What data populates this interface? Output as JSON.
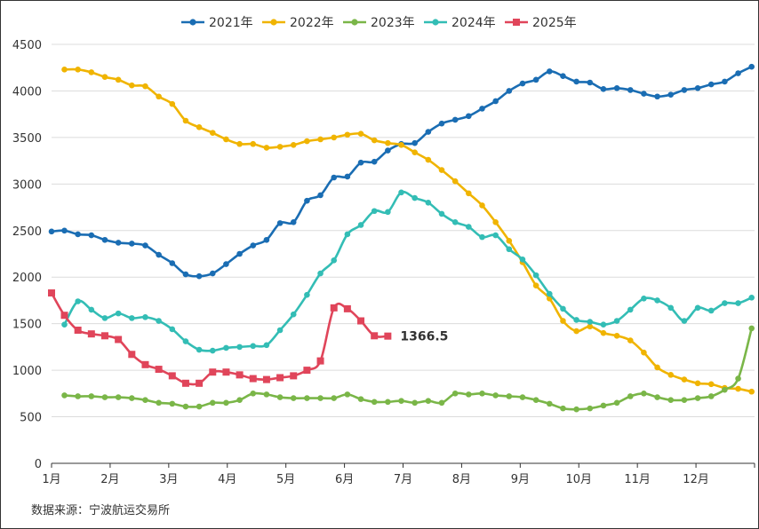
{
  "chart_data": {
    "type": "line",
    "source": "数据来源：宁波航运交易所",
    "ylim": [
      0,
      4500
    ],
    "yticks": [
      0,
      500,
      1000,
      1500,
      2000,
      2500,
      3000,
      3500,
      4000,
      4500
    ],
    "xlim": [
      1,
      13
    ],
    "month_labels": [
      "1月",
      "2月",
      "3月",
      "4月",
      "5月",
      "6月",
      "7月",
      "8月",
      "9月",
      "10月",
      "11月",
      "12月"
    ],
    "grid": "horizontal",
    "legend_position": "top",
    "annotation": "1366.5",
    "series": [
      {
        "name": "2021年",
        "color": "#1a6db3",
        "marker": "circle",
        "x": [
          1.0,
          1.22,
          1.45,
          1.68,
          1.91,
          2.14,
          2.37,
          2.6,
          2.83,
          3.06,
          3.29,
          3.52,
          3.75,
          3.98,
          4.21,
          4.44,
          4.67,
          4.9,
          5.13,
          5.36,
          5.59,
          5.82,
          6.05,
          6.28,
          6.51,
          6.74,
          6.97,
          7.2,
          7.43,
          7.66,
          7.89,
          8.12,
          8.35,
          8.58,
          8.81,
          9.04,
          9.27,
          9.5,
          9.73,
          9.96,
          10.19,
          10.42,
          10.65,
          10.88,
          11.11,
          11.34,
          11.57,
          11.8,
          12.03,
          12.26,
          12.49,
          12.72,
          12.95
        ],
        "y": [
          2490,
          2500,
          2460,
          2450,
          2400,
          2370,
          2360,
          2340,
          2240,
          2150,
          2030,
          2010,
          2040,
          2140,
          2250,
          2340,
          2400,
          2580,
          2590,
          2820,
          2880,
          3070,
          3080,
          3230,
          3240,
          3360,
          3430,
          3440,
          3560,
          3650,
          3690,
          3730,
          3810,
          3890,
          4000,
          4080,
          4120,
          4210,
          4160,
          4100,
          4090,
          4020,
          4030,
          4010,
          3970,
          3940,
          3960,
          4010,
          4030,
          4070,
          4100,
          4190,
          4260
        ]
      },
      {
        "name": "2022年",
        "color": "#f0b400",
        "marker": "circle",
        "x": [
          1.22,
          1.45,
          1.68,
          1.91,
          2.14,
          2.37,
          2.6,
          2.83,
          3.06,
          3.29,
          3.52,
          3.75,
          3.98,
          4.21,
          4.44,
          4.67,
          4.9,
          5.13,
          5.36,
          5.59,
          5.82,
          6.05,
          6.28,
          6.51,
          6.74,
          6.97,
          7.2,
          7.43,
          7.66,
          7.89,
          8.12,
          8.35,
          8.58,
          8.81,
          9.04,
          9.27,
          9.5,
          9.73,
          9.96,
          10.19,
          10.42,
          10.65,
          10.88,
          11.11,
          11.34,
          11.57,
          11.8,
          12.03,
          12.26,
          12.49,
          12.72,
          12.95
        ],
        "y": [
          4230,
          4230,
          4200,
          4150,
          4120,
          4060,
          4050,
          3940,
          3860,
          3680,
          3610,
          3550,
          3480,
          3430,
          3430,
          3390,
          3400,
          3420,
          3460,
          3480,
          3500,
          3530,
          3540,
          3470,
          3440,
          3420,
          3340,
          3260,
          3150,
          3030,
          2900,
          2770,
          2590,
          2390,
          2160,
          1910,
          1770,
          1530,
          1420,
          1470,
          1400,
          1370,
          1320,
          1190,
          1030,
          950,
          900,
          860,
          850,
          810,
          800,
          770
        ]
      },
      {
        "name": "2023年",
        "color": "#7ab648",
        "marker": "circle",
        "x": [
          1.22,
          1.45,
          1.68,
          1.91,
          2.14,
          2.37,
          2.6,
          2.83,
          3.06,
          3.29,
          3.52,
          3.75,
          3.98,
          4.21,
          4.44,
          4.67,
          4.9,
          5.13,
          5.36,
          5.59,
          5.82,
          6.05,
          6.28,
          6.51,
          6.74,
          6.97,
          7.2,
          7.43,
          7.66,
          7.89,
          8.12,
          8.35,
          8.58,
          8.81,
          9.04,
          9.27,
          9.5,
          9.73,
          9.96,
          10.19,
          10.42,
          10.65,
          10.88,
          11.11,
          11.34,
          11.57,
          11.8,
          12.03,
          12.26,
          12.49,
          12.72,
          12.95
        ],
        "y": [
          730,
          720,
          720,
          710,
          710,
          700,
          680,
          650,
          640,
          610,
          610,
          650,
          650,
          680,
          750,
          740,
          710,
          700,
          700,
          700,
          700,
          740,
          690,
          660,
          660,
          670,
          650,
          670,
          650,
          750,
          740,
          750,
          730,
          720,
          710,
          680,
          640,
          590,
          580,
          590,
          620,
          650,
          720,
          750,
          710,
          680,
          680,
          700,
          720,
          790,
          910,
          1450
        ]
      },
      {
        "name": "2024年",
        "color": "#33bdb5",
        "marker": "circle",
        "x": [
          1.22,
          1.45,
          1.68,
          1.91,
          2.14,
          2.37,
          2.6,
          2.83,
          3.06,
          3.29,
          3.52,
          3.75,
          3.98,
          4.21,
          4.44,
          4.67,
          4.9,
          5.13,
          5.36,
          5.59,
          5.82,
          6.05,
          6.28,
          6.51,
          6.74,
          6.97,
          7.2,
          7.43,
          7.66,
          7.89,
          8.12,
          8.35,
          8.58,
          8.81,
          9.04,
          9.27,
          9.5,
          9.73,
          9.96,
          10.19,
          10.42,
          10.65,
          10.88,
          11.11,
          11.34,
          11.57,
          11.8,
          12.03,
          12.26,
          12.49,
          12.72,
          12.95
        ],
        "y": [
          1490,
          1740,
          1650,
          1560,
          1610,
          1560,
          1570,
          1530,
          1440,
          1310,
          1220,
          1210,
          1240,
          1250,
          1260,
          1270,
          1430,
          1600,
          1810,
          2040,
          2180,
          2460,
          2560,
          2710,
          2700,
          2910,
          2850,
          2800,
          2680,
          2590,
          2540,
          2430,
          2450,
          2300,
          2190,
          2020,
          1820,
          1660,
          1540,
          1520,
          1490,
          1530,
          1650,
          1770,
          1750,
          1670,
          1530,
          1670,
          1640,
          1720,
          1720,
          1780
        ]
      },
      {
        "name": "2025年",
        "color": "#e0455a",
        "marker": "square",
        "x": [
          1.0,
          1.22,
          1.45,
          1.68,
          1.91,
          2.14,
          2.37,
          2.6,
          2.83,
          3.06,
          3.29,
          3.52,
          3.75,
          3.98,
          4.21,
          4.44,
          4.67,
          4.9,
          5.13,
          5.36,
          5.59,
          5.82,
          6.05,
          6.28,
          6.51,
          6.74
        ],
        "y": [
          1830,
          1590,
          1430,
          1390,
          1370,
          1330,
          1170,
          1060,
          1010,
          940,
          860,
          860,
          980,
          980,
          950,
          910,
          900,
          920,
          940,
          1000,
          1100,
          1670,
          1660,
          1530,
          1370,
          1366.5
        ]
      }
    ]
  }
}
